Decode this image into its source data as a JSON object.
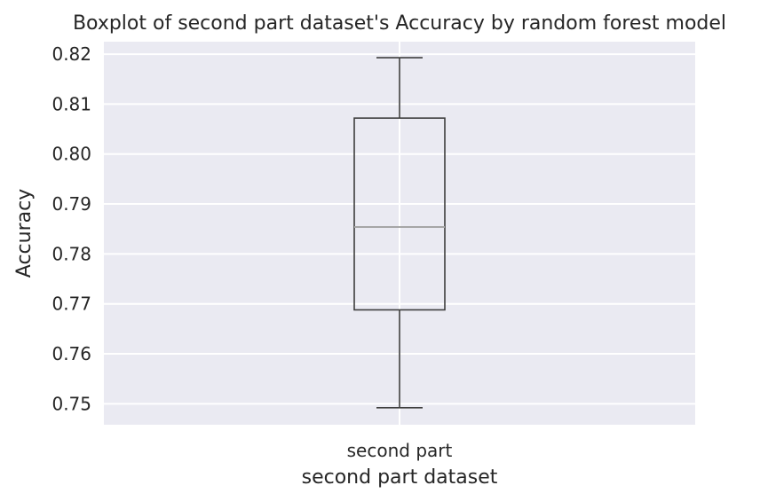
{
  "chart_data": {
    "type": "box",
    "title": "Boxplot of second part dataset's Accuracy by random forest model",
    "xlabel": "second part dataset",
    "ylabel": "Accuracy",
    "categories": [
      "second part"
    ],
    "boxes": [
      {
        "category": "second part",
        "whisker_low": 0.7492,
        "q1": 0.7688,
        "median": 0.7854,
        "q3": 0.8072,
        "whisker_high": 0.8193
      }
    ],
    "ylim": [
      0.7458,
      0.8225
    ],
    "yticks": [
      0.75,
      0.76,
      0.77,
      0.78,
      0.79,
      0.8,
      0.81,
      0.82
    ],
    "ytick_labels": [
      "0.75",
      "0.76",
      "0.77",
      "0.78",
      "0.79",
      "0.80",
      "0.81",
      "0.82"
    ],
    "grid": true,
    "colors": {
      "plot_background": "#eaeaf2",
      "grid": "#ffffff",
      "box_edge": "#3d3d3d",
      "median": "#a6a6a6",
      "text": "#262626"
    }
  }
}
